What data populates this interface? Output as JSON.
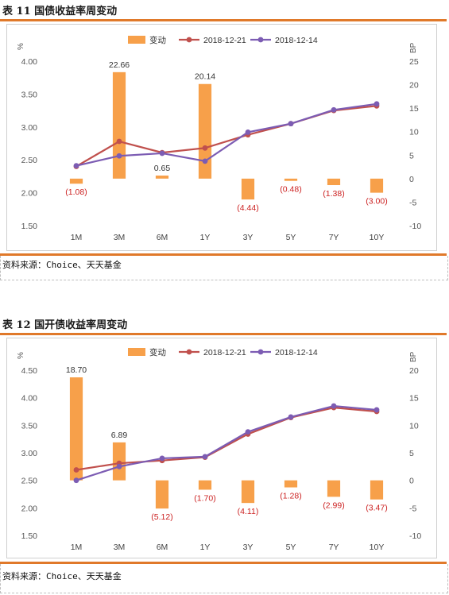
{
  "charts": [
    {
      "title": "表 11 国债收益率周变动",
      "source": "资料来源：Choice、天天基金",
      "chart_data": {
        "type": "bar+line",
        "categories": [
          "1M",
          "3M",
          "6M",
          "1Y",
          "3Y",
          "5Y",
          "7Y",
          "10Y"
        ],
        "left_axis_label": "%",
        "right_axis_label": "BP",
        "left_ylim": [
          1.5,
          4.0
        ],
        "left_ticks": [
          "4.00",
          "3.50",
          "3.00",
          "2.50",
          "2.00",
          "1.50"
        ],
        "right_ylim": [
          -10,
          25
        ],
        "right_ticks": [
          "25",
          "20",
          "15",
          "10",
          "5",
          "0",
          "-5",
          "-10"
        ],
        "legend": [
          "变动",
          "2018-12-21",
          "2018-12-14"
        ],
        "bar_series": {
          "name": "变动",
          "values": [
            -1.08,
            22.66,
            0.65,
            20.14,
            -4.44,
            -0.48,
            -1.38,
            -3.0
          ]
        },
        "bar_labels": [
          "(1.08)",
          "22.66",
          "0.65",
          "20.14",
          "(4.44)",
          "(0.48)",
          "(1.38)",
          "(3.00)"
        ],
        "line_series": [
          {
            "name": "2018-12-21",
            "values": [
              2.4,
              2.78,
              2.61,
              2.68,
              2.88,
              3.05,
              3.25,
              3.32
            ]
          },
          {
            "name": "2018-12-14",
            "values": [
              2.41,
              2.56,
              2.6,
              2.48,
              2.92,
              3.05,
              3.26,
              3.35
            ]
          }
        ],
        "colors": {
          "bar": "#f7a04a",
          "line1": "#c0504d",
          "line2": "#7c5cb3",
          "neg_label": "#cc2222"
        }
      }
    },
    {
      "title": "表 12 国开债收益率周变动",
      "source": "资料来源：Choice、天天基金",
      "chart_data": {
        "type": "bar+line",
        "categories": [
          "1M",
          "3M",
          "6M",
          "1Y",
          "3Y",
          "5Y",
          "7Y",
          "10Y"
        ],
        "left_axis_label": "%",
        "right_axis_label": "BP",
        "left_ylim": [
          1.5,
          4.5
        ],
        "left_ticks": [
          "4.50",
          "4.00",
          "3.50",
          "3.00",
          "2.50",
          "2.00",
          "1.50"
        ],
        "right_ylim": [
          -10,
          20
        ],
        "right_ticks": [
          "20",
          "15",
          "10",
          "5",
          "0",
          "-5",
          "-10"
        ],
        "legend": [
          "变动",
          "2018-12-21",
          "2018-12-14"
        ],
        "bar_series": {
          "name": "变动",
          "values": [
            18.7,
            6.89,
            -5.12,
            -1.7,
            -4.11,
            -1.28,
            -2.99,
            -3.47
          ]
        },
        "bar_labels": [
          "18.70",
          "6.89",
          "(5.12)",
          "(1.70)",
          "(4.11)",
          "(1.28)",
          "(2.99)",
          "(3.47)"
        ],
        "line_series": [
          {
            "name": "2018-12-21",
            "values": [
              2.69,
              2.81,
              2.86,
              2.92,
              3.34,
              3.64,
              3.82,
              3.75
            ]
          },
          {
            "name": "2018-12-14",
            "values": [
              2.5,
              2.75,
              2.9,
              2.93,
              3.38,
              3.65,
              3.85,
              3.78
            ]
          }
        ],
        "colors": {
          "bar": "#f7a04a",
          "line1": "#c0504d",
          "line2": "#7c5cb3",
          "neg_label": "#cc2222"
        }
      }
    }
  ]
}
